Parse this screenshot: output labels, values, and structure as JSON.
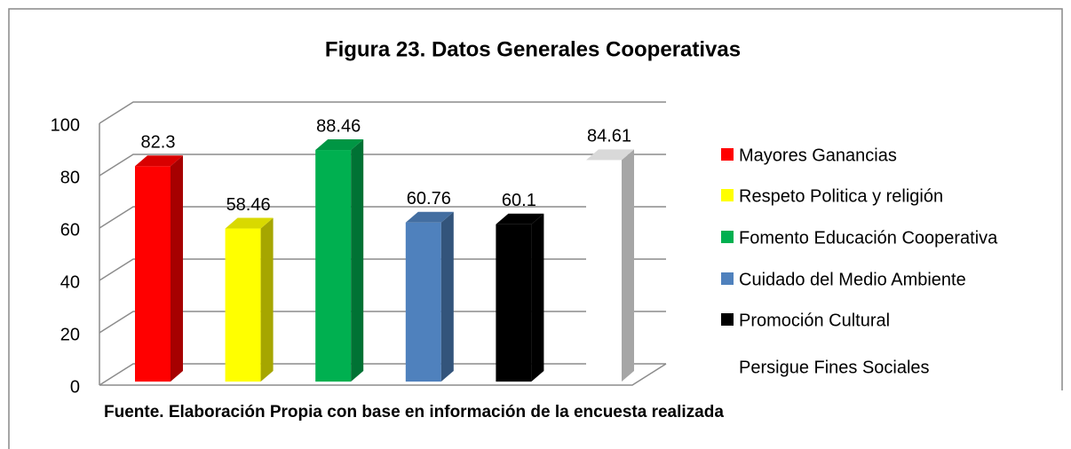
{
  "chart_data": {
    "type": "bar",
    "title": "Figura 23. Datos Generales Cooperativas",
    "note": "Fuente. Elaboración Propia con base en información de la encuesta realizada",
    "series": [
      {
        "name": "Mayores Ganancias",
        "color": "#ff0000",
        "values": [
          82.3
        ]
      },
      {
        "name": "Respeto Politica y religión",
        "color": "#ffff00",
        "values": [
          58.46
        ]
      },
      {
        "name": "Fomento Educación Cooperativa",
        "color": "#00b050",
        "values": [
          88.46
        ]
      },
      {
        "name": "Cuidado del Medio Ambiente",
        "color": "#4f81bd",
        "values": [
          60.76
        ]
      },
      {
        "name": "Promoción Cultural",
        "color": "#000000",
        "values": [
          60.1
        ]
      },
      {
        "name": "Persigue Fines Sociales",
        "color": "#ffffff",
        "values": [
          84.61
        ]
      }
    ],
    "ylim": [
      0,
      100
    ],
    "yticks": [
      0,
      20,
      40,
      60,
      80,
      100
    ],
    "grid": true,
    "legend": "right"
  }
}
